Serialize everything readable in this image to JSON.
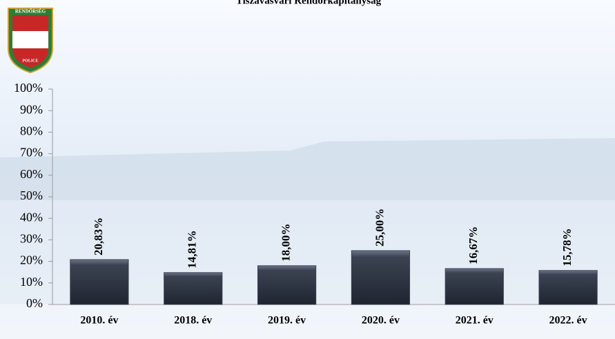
{
  "chart_data": {
    "type": "bar",
    "title": "Tiszavasvári Rendőrkapitányság",
    "logo": {
      "top": "RENDŐRSÉG",
      "bottom": "POLICE"
    },
    "categories": [
      "2010. év",
      "2018. év",
      "2019. év",
      "2020. év",
      "2021. év",
      "2022. év"
    ],
    "values": [
      20.83,
      14.81,
      18.0,
      25.0,
      16.67,
      15.78
    ],
    "value_labels": [
      "20,83%",
      "14,81%",
      "18,00%",
      "25,00%",
      "16,67%",
      "15,78%"
    ],
    "color": "#3b4352",
    "ylim": [
      0,
      100
    ],
    "yticks": [
      {
        "value": 0,
        "label": "0%"
      },
      {
        "value": 10,
        "label": "10%"
      },
      {
        "value": 20,
        "label": "20%"
      },
      {
        "value": 30,
        "label": "30%"
      },
      {
        "value": 40,
        "label": "40%"
      },
      {
        "value": 50,
        "label": "50%"
      },
      {
        "value": 60,
        "label": "60%"
      },
      {
        "value": 70,
        "label": "70%"
      },
      {
        "value": 80,
        "label": "80%"
      },
      {
        "value": 90,
        "label": "90%"
      },
      {
        "value": 100,
        "label": "100%"
      }
    ]
  }
}
